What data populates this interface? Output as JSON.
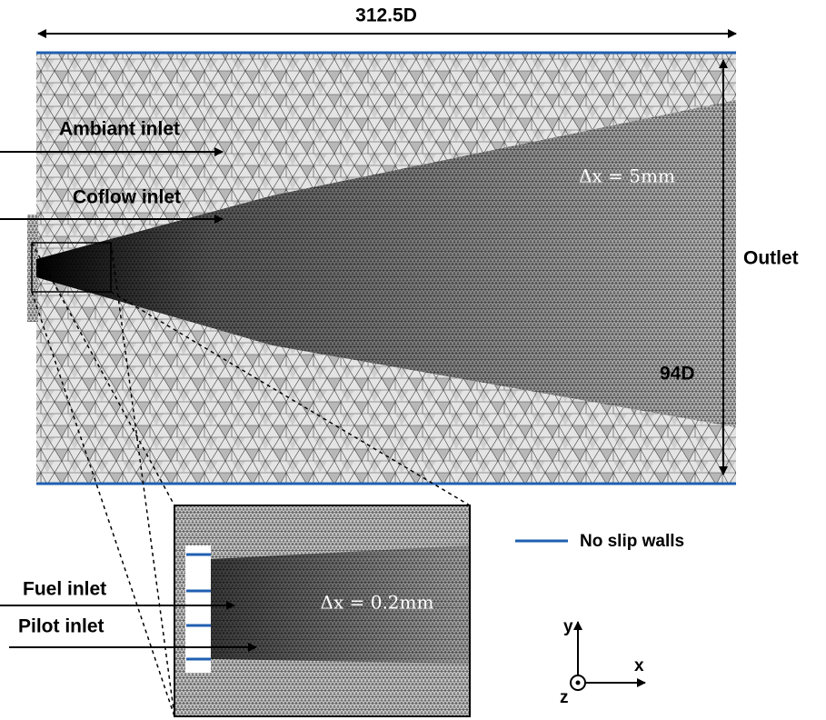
{
  "labels": {
    "width": "312.5D",
    "ambient_inlet": "Ambiant inlet",
    "coflow_inlet": "Coflow inlet",
    "coarse_resolution": "Δx = 5mm",
    "outlet": "Outlet",
    "height": "94D",
    "walls_legend": "No slip walls",
    "fuel_inlet": "Fuel inlet",
    "pilot_inlet": "Pilot inlet",
    "fine_resolution": "Δx = 0.2mm",
    "axis_y": "y",
    "axis_x": "x",
    "axis_z": "z"
  }
}
